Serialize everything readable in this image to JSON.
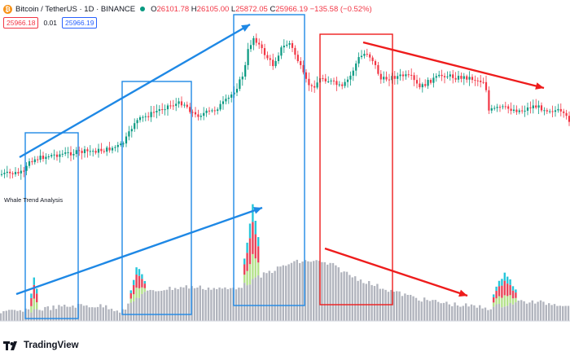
{
  "header": {
    "symbol": "Bitcoin / TetherUS · 1D · BINANCE",
    "open_label": "O",
    "open": "26101.78",
    "high_label": "H",
    "high": "26105.00",
    "low_label": "L",
    "low": "25872.05",
    "close_label": "C",
    "close": "25966.19",
    "change": "−135.58 (−0.52%)"
  },
  "price_row": {
    "sell_price": "25966.18",
    "spread": "0.01",
    "buy_price": "25966.19"
  },
  "indicator": {
    "title": "Whale Trend Analysis"
  },
  "branding": {
    "logo_text": "TradingView"
  },
  "colors": {
    "up_candle": "#089981",
    "down_candle": "#f23645",
    "blue_annotation": "#1e88e5",
    "red_annotation": "#ee1c1c",
    "volume_gray": "#b2b5be",
    "volume_cyan": "#26c6da",
    "volume_red": "#e8445a",
    "volume_green": "#b4e18a"
  },
  "icons": [
    "bitcoin-coin-icon",
    "market-open-dot-icon",
    "tradingview-logo-icon"
  ]
}
